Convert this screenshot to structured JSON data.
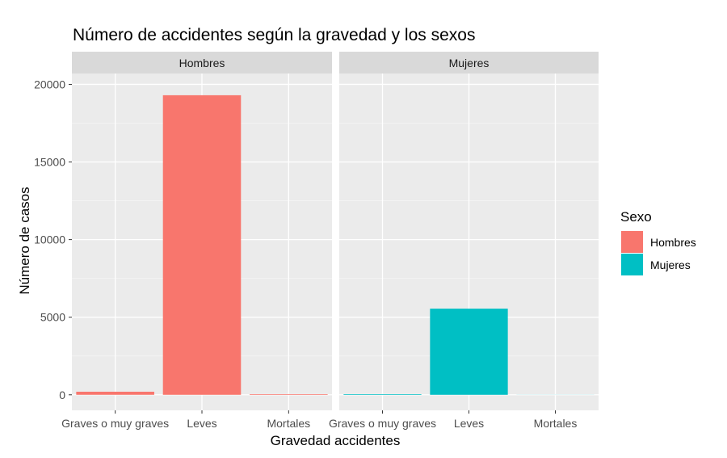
{
  "chart_data": {
    "type": "bar",
    "title": "Número de accidentes según la gravedad y los sexos",
    "xlabel": "Gravedad accidentes",
    "ylabel": "Número de casos",
    "ylim": [
      -1000,
      20700
    ],
    "y_ticks": [
      0,
      5000,
      10000,
      15000,
      20000
    ],
    "y_tick_labels": [
      "0",
      "5000",
      "10000",
      "15000",
      "20000"
    ],
    "categories": [
      "Graves o muy graves",
      "Leves",
      "Mortales"
    ],
    "grid": true,
    "legend": {
      "title": "Sexo",
      "position": "right",
      "items": [
        {
          "label": "Hombres",
          "color": "#F8766D"
        },
        {
          "label": "Mujeres",
          "color": "#00BFC4"
        }
      ]
    },
    "facets": [
      {
        "label": "Hombres",
        "color": "#F8766D",
        "values": [
          200,
          19300,
          40
        ]
      },
      {
        "label": "Mujeres",
        "color": "#00BFC4",
        "values": [
          40,
          5550,
          5
        ]
      }
    ]
  },
  "colors": {
    "panel_bg": "#EBEBEB",
    "strip_bg": "#D9D9D9",
    "grid_major": "#FFFFFF",
    "text": "#000000",
    "tick_text": "#4D4D4D"
  }
}
